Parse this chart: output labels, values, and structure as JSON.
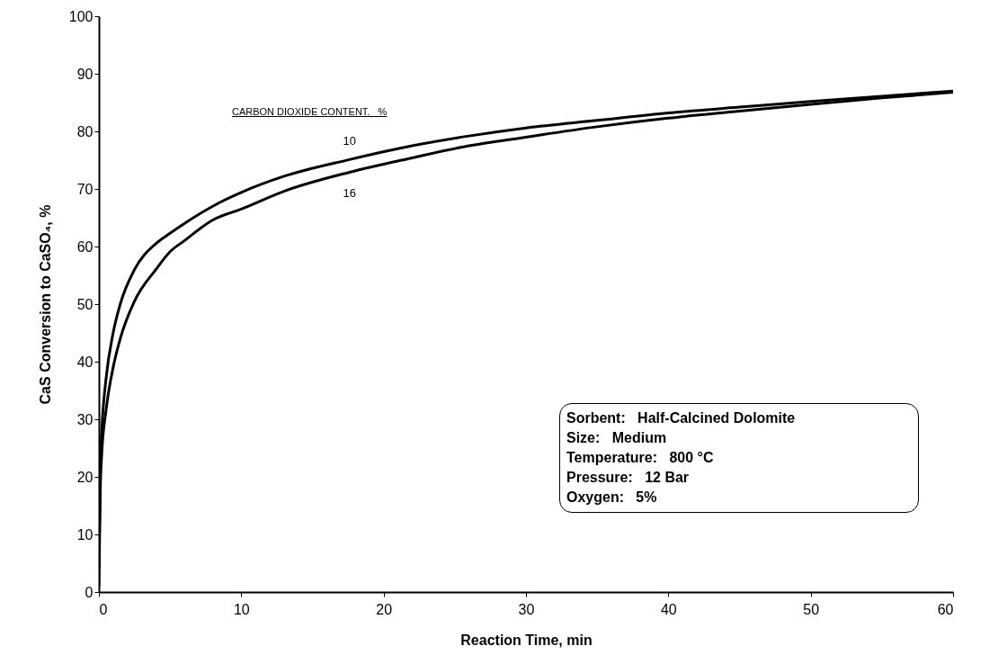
{
  "chart_data": {
    "type": "line",
    "xlabel": "Reaction Time,  min",
    "ylabel": "CaS Conversion to CaSO₄, %",
    "legend_title": "CARBON DIOXIDE CONTENT.   %",
    "x": [
      0,
      0.1,
      0.2,
      0.5,
      1,
      1.5,
      2.5,
      4,
      5,
      6,
      8,
      10,
      13,
      17.6,
      22,
      26,
      30,
      35,
      40,
      45,
      50,
      55,
      60
    ],
    "series": [
      {
        "name": "10",
        "color": "#000000",
        "values": [
          4,
          22,
          28,
          37,
          45,
          50,
          56,
          60.5,
          62.3,
          64,
          67,
          69.4,
          72.2,
          75.1,
          77.5,
          79.2,
          80.6,
          81.9,
          83.2,
          84.2,
          85.2,
          86.1,
          87
        ]
      },
      {
        "name": "16",
        "color": "#000000",
        "values": [
          1,
          18,
          24,
          31.5,
          39,
          44,
          50.5,
          56,
          59.1,
          61,
          64.6,
          66.5,
          69.6,
          72.9,
          75.4,
          77.5,
          79,
          80.8,
          82.3,
          83.5,
          84.7,
          85.8,
          86.8
        ]
      }
    ],
    "xlim": [
      0,
      60
    ],
    "xticks": [
      0,
      10,
      20,
      30,
      40,
      50,
      60
    ],
    "ylim": [
      0,
      100
    ],
    "yticks": [
      0,
      10,
      20,
      30,
      40,
      50,
      60,
      70,
      80,
      90,
      100
    ],
    "grid": false,
    "marker": "none",
    "line_style": "solid",
    "annotations": [
      "Sorbent:   Half-Calcined Dolomite",
      "Size:   Medium",
      "Temperature:   800 °C",
      "Pressure:   12 Bar",
      "Oxygen:   5%"
    ]
  }
}
